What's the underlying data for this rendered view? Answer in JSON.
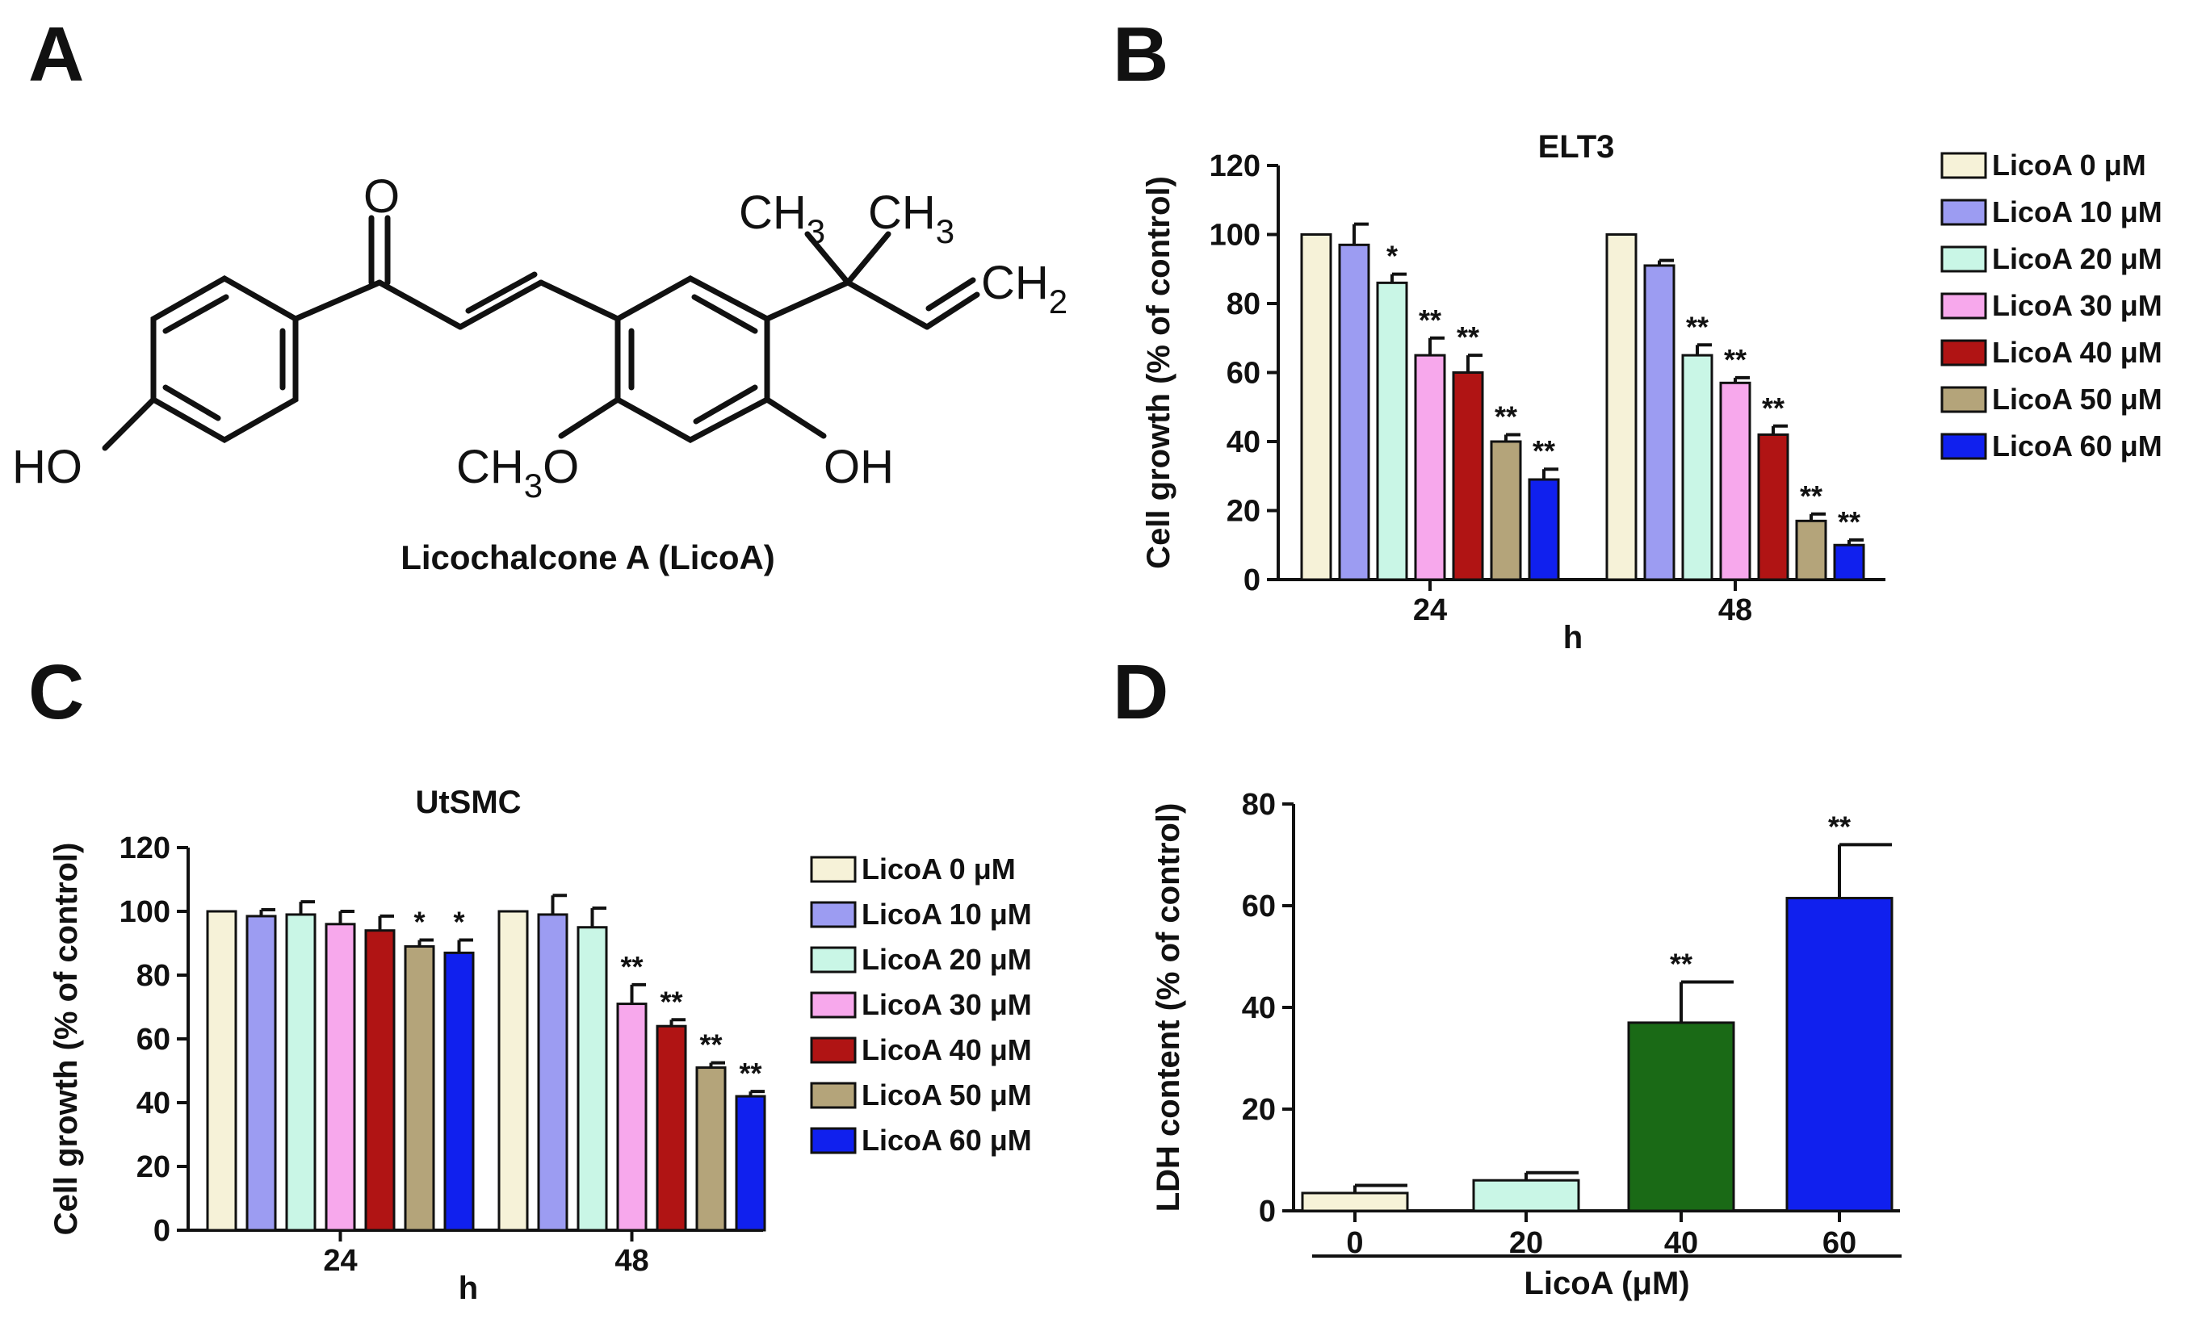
{
  "panels": {
    "a": {
      "letter": "A",
      "caption": "Licochalcone A (LicoA)",
      "atoms": {
        "o": "O",
        "ch3_1": "CH",
        "ch3_1_sub": "3",
        "ch3_2": "CH",
        "ch3_2_sub": "3",
        "ch2": "CH",
        "ch2_sub": "2",
        "ho": "HO",
        "och3": "CH",
        "och3_sub": "3",
        "och3_o": "O",
        "oh": "OH"
      }
    },
    "b": {
      "letter": "B"
    },
    "c": {
      "letter": "C"
    },
    "d": {
      "letter": "D"
    }
  },
  "legend": {
    "unit": "μM",
    "items": [
      "LicoA  0",
      "LicoA 10",
      "LicoA 20",
      "LicoA 30",
      "LicoA 40",
      "LicoA 50",
      "LicoA 60"
    ]
  },
  "colors": {
    "c0": "#f6f2d8",
    "c10": "#9c9cf2",
    "c20": "#c9f6e6",
    "c30": "#f7a8ec",
    "c40": "#b01414",
    "c50": "#b4a47a",
    "c60": "#1020ee",
    "green": "#1a6a16"
  },
  "chart_data": [
    {
      "id": "b",
      "type": "bar",
      "title": "ELT3",
      "xlabel": "h",
      "ylabel": "Cell growth (% of control)",
      "ylim": [
        0,
        120
      ],
      "yticks": [
        "0",
        "20",
        "40",
        "60",
        "80",
        "100",
        "120"
      ],
      "categories": [
        "24",
        "48"
      ],
      "series": [
        {
          "name": "LicoA  0 μM",
          "values": [
            100,
            100
          ],
          "errors": [
            0,
            0
          ],
          "sig": [
            "",
            ""
          ]
        },
        {
          "name": "LicoA 10 μM",
          "values": [
            97,
            91
          ],
          "errors": [
            6,
            1.5
          ],
          "sig": [
            "",
            ""
          ]
        },
        {
          "name": "LicoA 20 μM",
          "values": [
            86,
            65
          ],
          "errors": [
            2.5,
            3
          ],
          "sig": [
            "*",
            "**"
          ]
        },
        {
          "name": "LicoA 30 μM",
          "values": [
            65,
            57
          ],
          "errors": [
            5,
            1.5
          ],
          "sig": [
            "**",
            "**"
          ]
        },
        {
          "name": "LicoA 40 μM",
          "values": [
            60,
            42
          ],
          "errors": [
            5,
            2.5
          ],
          "sig": [
            "**",
            "**"
          ]
        },
        {
          "name": "LicoA 50 μM",
          "values": [
            40,
            17
          ],
          "errors": [
            2,
            2
          ],
          "sig": [
            "**",
            "**"
          ]
        },
        {
          "name": "LicoA 60 μM",
          "values": [
            29,
            10
          ],
          "errors": [
            3,
            1.5
          ],
          "sig": [
            "**",
            "**"
          ]
        }
      ]
    },
    {
      "id": "c",
      "type": "bar",
      "title": "UtSMC",
      "xlabel": "h",
      "ylabel": "Cell growth (% of control)",
      "ylim": [
        0,
        120
      ],
      "yticks": [
        "0",
        "20",
        "40",
        "60",
        "80",
        "100",
        "120"
      ],
      "categories": [
        "24",
        "48"
      ],
      "series": [
        {
          "name": "LicoA  0 μM",
          "values": [
            100,
            100
          ],
          "errors": [
            0,
            0
          ],
          "sig": [
            "",
            ""
          ]
        },
        {
          "name": "LicoA 10 μM",
          "values": [
            98.5,
            99
          ],
          "errors": [
            2,
            6
          ],
          "sig": [
            "",
            ""
          ]
        },
        {
          "name": "LicoA 20 μM",
          "values": [
            99,
            95
          ],
          "errors": [
            4,
            6
          ],
          "sig": [
            "",
            ""
          ]
        },
        {
          "name": "LicoA 30 μM",
          "values": [
            96,
            71
          ],
          "errors": [
            4,
            6
          ],
          "sig": [
            "",
            "**"
          ]
        },
        {
          "name": "LicoA 40 μM",
          "values": [
            94,
            64
          ],
          "errors": [
            4.5,
            2
          ],
          "sig": [
            "",
            "**"
          ]
        },
        {
          "name": "LicoA 50 μM",
          "values": [
            89,
            51
          ],
          "errors": [
            2,
            1.5
          ],
          "sig": [
            "*",
            "**"
          ]
        },
        {
          "name": "LicoA 60 μM",
          "values": [
            87,
            42
          ],
          "errors": [
            4,
            1.5
          ],
          "sig": [
            "*",
            "**"
          ]
        }
      ]
    },
    {
      "id": "d",
      "type": "bar",
      "title": "",
      "xlabel": "LicoA (μM)",
      "ylabel": "LDH content (% of control)",
      "ylim": [
        0,
        80
      ],
      "yticks": [
        "0",
        "20",
        "40",
        "60",
        "80"
      ],
      "categories": [
        "0",
        "20",
        "40",
        "60"
      ],
      "values": [
        3.5,
        6,
        37,
        61.5
      ],
      "errors": [
        1.5,
        1.5,
        8,
        10.5
      ],
      "sig": [
        "",
        "",
        "**",
        "**"
      ]
    }
  ]
}
